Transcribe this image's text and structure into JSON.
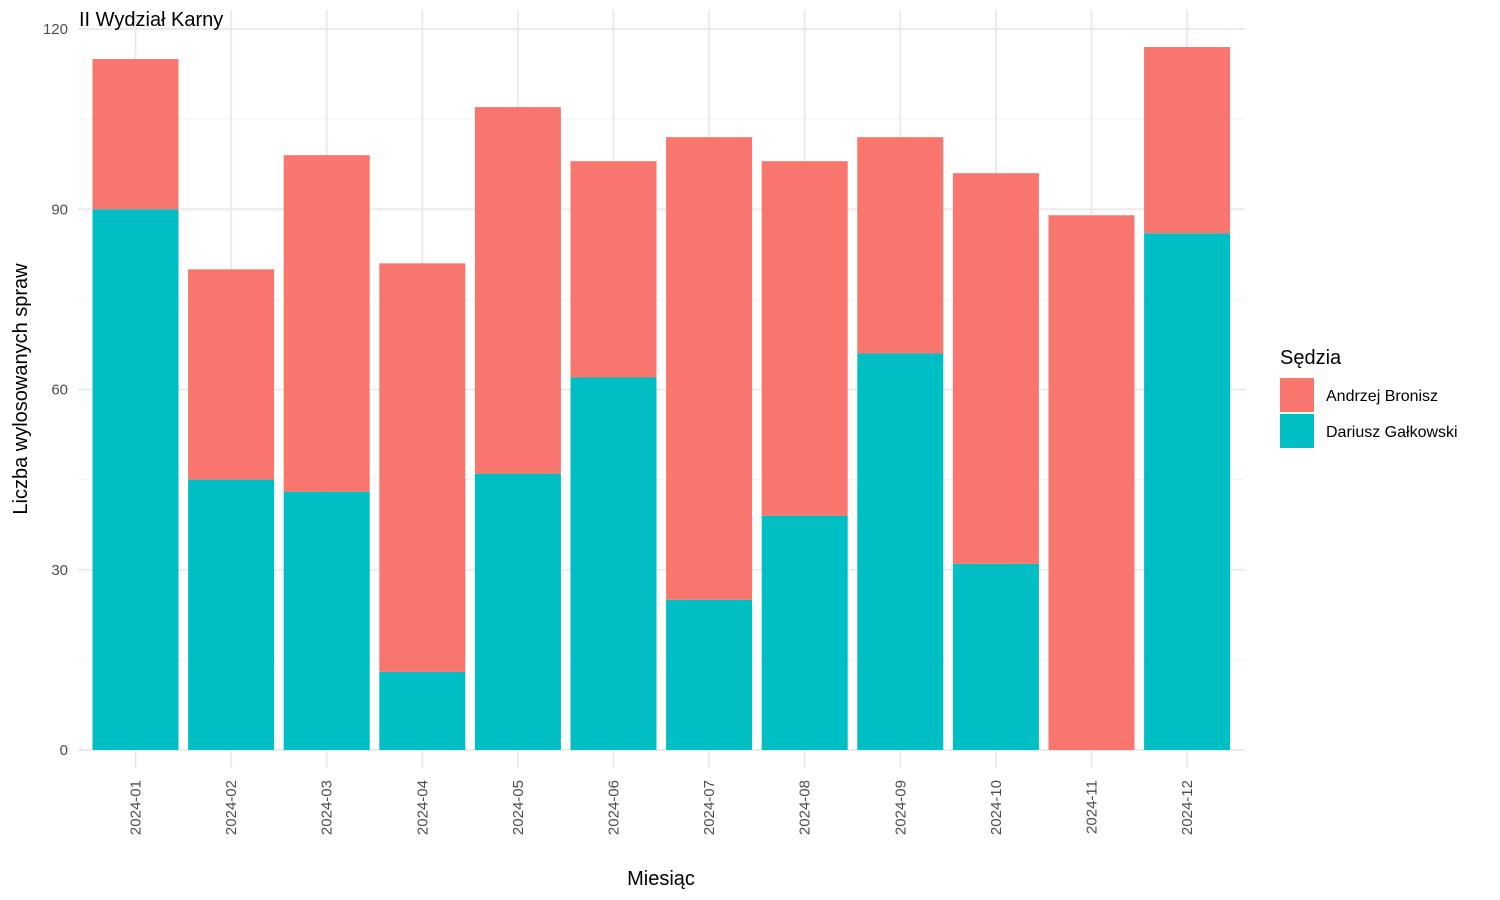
{
  "chart_data": {
    "type": "bar",
    "stacked": true,
    "title": "II Wydział Karny",
    "xlabel": "Miesiąc",
    "ylabel": "Liczba wylosowanych spraw",
    "ylim": [
      0,
      120
    ],
    "yticks": [
      0,
      30,
      60,
      90,
      120
    ],
    "grid": true,
    "legend_position": "right",
    "legend_title": "Sędzia",
    "categories": [
      "2024-01",
      "2024-02",
      "2024-03",
      "2024-04",
      "2024-05",
      "2024-06",
      "2024-07",
      "2024-08",
      "2024-09",
      "2024-10",
      "2024-11",
      "2024-12"
    ],
    "series": [
      {
        "name": "Dariusz Gałkowski",
        "color": "#00BFC4",
        "values": [
          90,
          45,
          43,
          13,
          46,
          62,
          25,
          39,
          66,
          31,
          0,
          86
        ]
      },
      {
        "name": "Andrzej Bronisz",
        "color": "#F8766D",
        "values": [
          25,
          35,
          56,
          68,
          61,
          36,
          77,
          59,
          36,
          65,
          89,
          31
        ]
      }
    ],
    "legend_order": [
      "Andrzej Bronisz",
      "Dariusz Gałkowski"
    ]
  }
}
